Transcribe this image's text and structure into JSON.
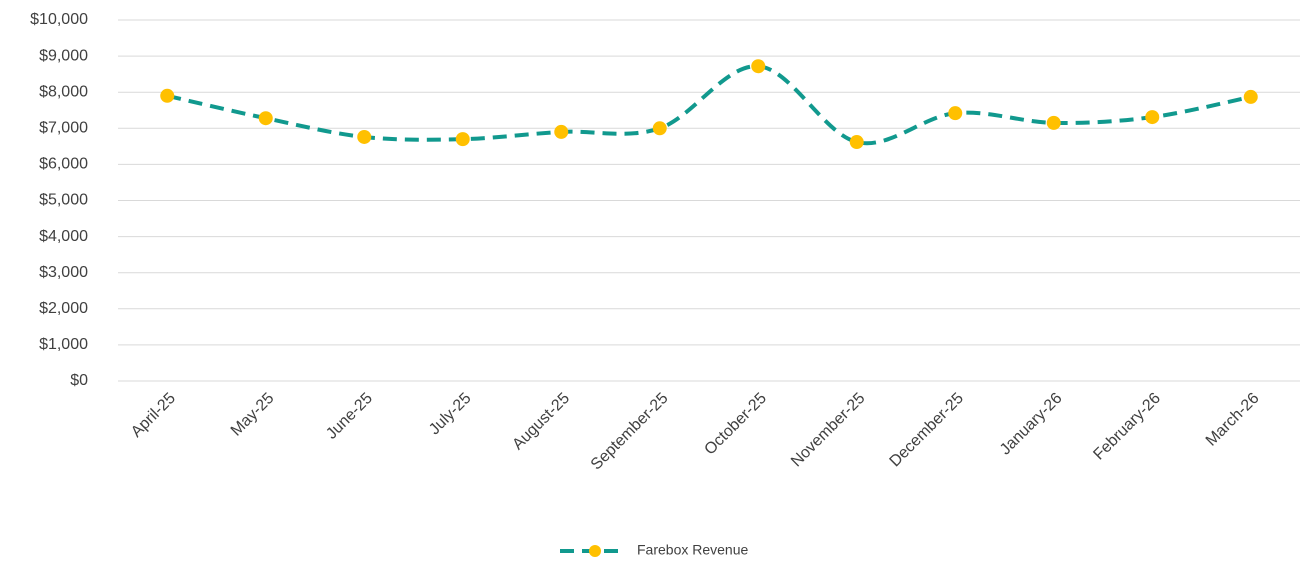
{
  "chart_data": {
    "type": "line",
    "categories": [
      "April-25",
      "May-25",
      "June-25",
      "July-25",
      "August-25",
      "September-25",
      "October-25",
      "November-25",
      "December-25",
      "January-26",
      "February-26",
      "March-26"
    ],
    "series": [
      {
        "name": "Farebox Revenue",
        "color": "#11998e",
        "marker_color": "#ffc000",
        "values": [
          7900,
          7280,
          6760,
          6700,
          6900,
          7000,
          8720,
          6620,
          7420,
          7150,
          7310,
          7870
        ]
      }
    ],
    "ylim": [
      0,
      10000
    ],
    "yticks": [
      {
        "value": 0,
        "label": "$0"
      },
      {
        "value": 1000,
        "label": "$1,000"
      },
      {
        "value": 2000,
        "label": "$2,000"
      },
      {
        "value": 3000,
        "label": "$3,000"
      },
      {
        "value": 4000,
        "label": "$4,000"
      },
      {
        "value": 5000,
        "label": "$5,000"
      },
      {
        "value": 6000,
        "label": "$6,000"
      },
      {
        "value": 7000,
        "label": "$7,000"
      },
      {
        "value": 8000,
        "label": "$8,000"
      },
      {
        "value": 9000,
        "label": "$9,000"
      },
      {
        "value": 10000,
        "label": "$10,000"
      }
    ],
    "grid": true,
    "legend": "bottom"
  }
}
